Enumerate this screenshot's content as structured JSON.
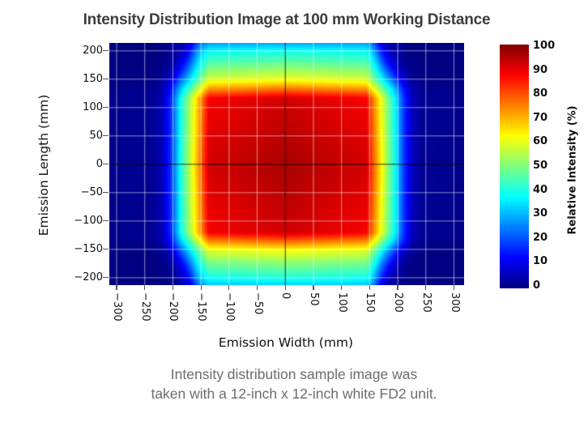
{
  "figure": {
    "title": "Intensity Distribution Image at 100 mm Working Distance",
    "caption_line1": "Intensity distribution sample image was",
    "caption_line2": "taken with a 12-inch x 12-inch white FD2 unit."
  },
  "chart_data": {
    "type": "heatmap",
    "title": "Intensity Distribution Image at 100 mm Working Distance",
    "xlabel": "Emission Width (mm)",
    "ylabel": "Emission Length (mm)",
    "colorbar_label": "Relative Intensity (%)",
    "xlim": [
      -313,
      318
    ],
    "ylim": [
      -213,
      214
    ],
    "x_ticks": [
      -300,
      -250,
      -200,
      -150,
      -100,
      -50,
      0,
      50,
      100,
      150,
      200,
      250,
      300
    ],
    "y_ticks": [
      200,
      150,
      100,
      50,
      0,
      -50,
      -100,
      -150,
      -200
    ],
    "colorbar_ticks": [
      0,
      10,
      20,
      30,
      40,
      50,
      60,
      70,
      80,
      90,
      100
    ],
    "colorbar_range": [
      0,
      100
    ],
    "colormap": "jet",
    "colormap_stops": [
      [
        0,
        "#000080"
      ],
      [
        12.5,
        "#0000ff"
      ],
      [
        37.5,
        "#00ffff"
      ],
      [
        62.5,
        "#ffff00"
      ],
      [
        87.5,
        "#ff0000"
      ],
      [
        100,
        "#7f0000"
      ]
    ],
    "grid": {
      "on": true,
      "spacing_mm": 50
    },
    "zero_axes": true,
    "working_distance_mm": 100,
    "peak_relative_intensity_pct": 96,
    "intensity_model": {
      "peak": 96,
      "center": {
        "x": 4,
        "y": -2
      },
      "h_profile": [
        [
          0,
          96
        ],
        [
          140,
          92
        ],
        [
          170,
          60
        ],
        [
          190,
          40
        ],
        [
          205,
          20
        ],
        [
          222,
          6
        ],
        [
          240,
          2
        ],
        [
          400,
          0
        ]
      ],
      "v_profile": [
        [
          0,
          96
        ],
        [
          118,
          92
        ],
        [
          150,
          62
        ],
        [
          175,
          50
        ],
        [
          200,
          40
        ],
        [
          215,
          30
        ],
        [
          245,
          8
        ],
        [
          400,
          0
        ]
      ],
      "corner": {
        "x0": 150,
        "y0": 130,
        "scale": 90,
        "strength": 20
      },
      "plateau": {
        "level": 3.5,
        "x_edge": 206,
        "right_chamfer": {
          "from": [
            206,
            -112
          ],
          "to": [
            120,
            -213
          ]
        },
        "left_chamfer": {
          "from": [
            -206,
            -141
          ],
          "to": [
            -134,
            -213
          ]
        }
      }
    }
  },
  "colors": {
    "page_bg": "#ffffff",
    "title_color": "#3d3d3d",
    "caption_color": "#6d6d6d",
    "tick_color": "#111111",
    "grid_color": "rgba(255,255,255,0.55)",
    "zero_line_color": "rgba(0,0,0,0.8)",
    "tick_mark_color": "#555555"
  }
}
